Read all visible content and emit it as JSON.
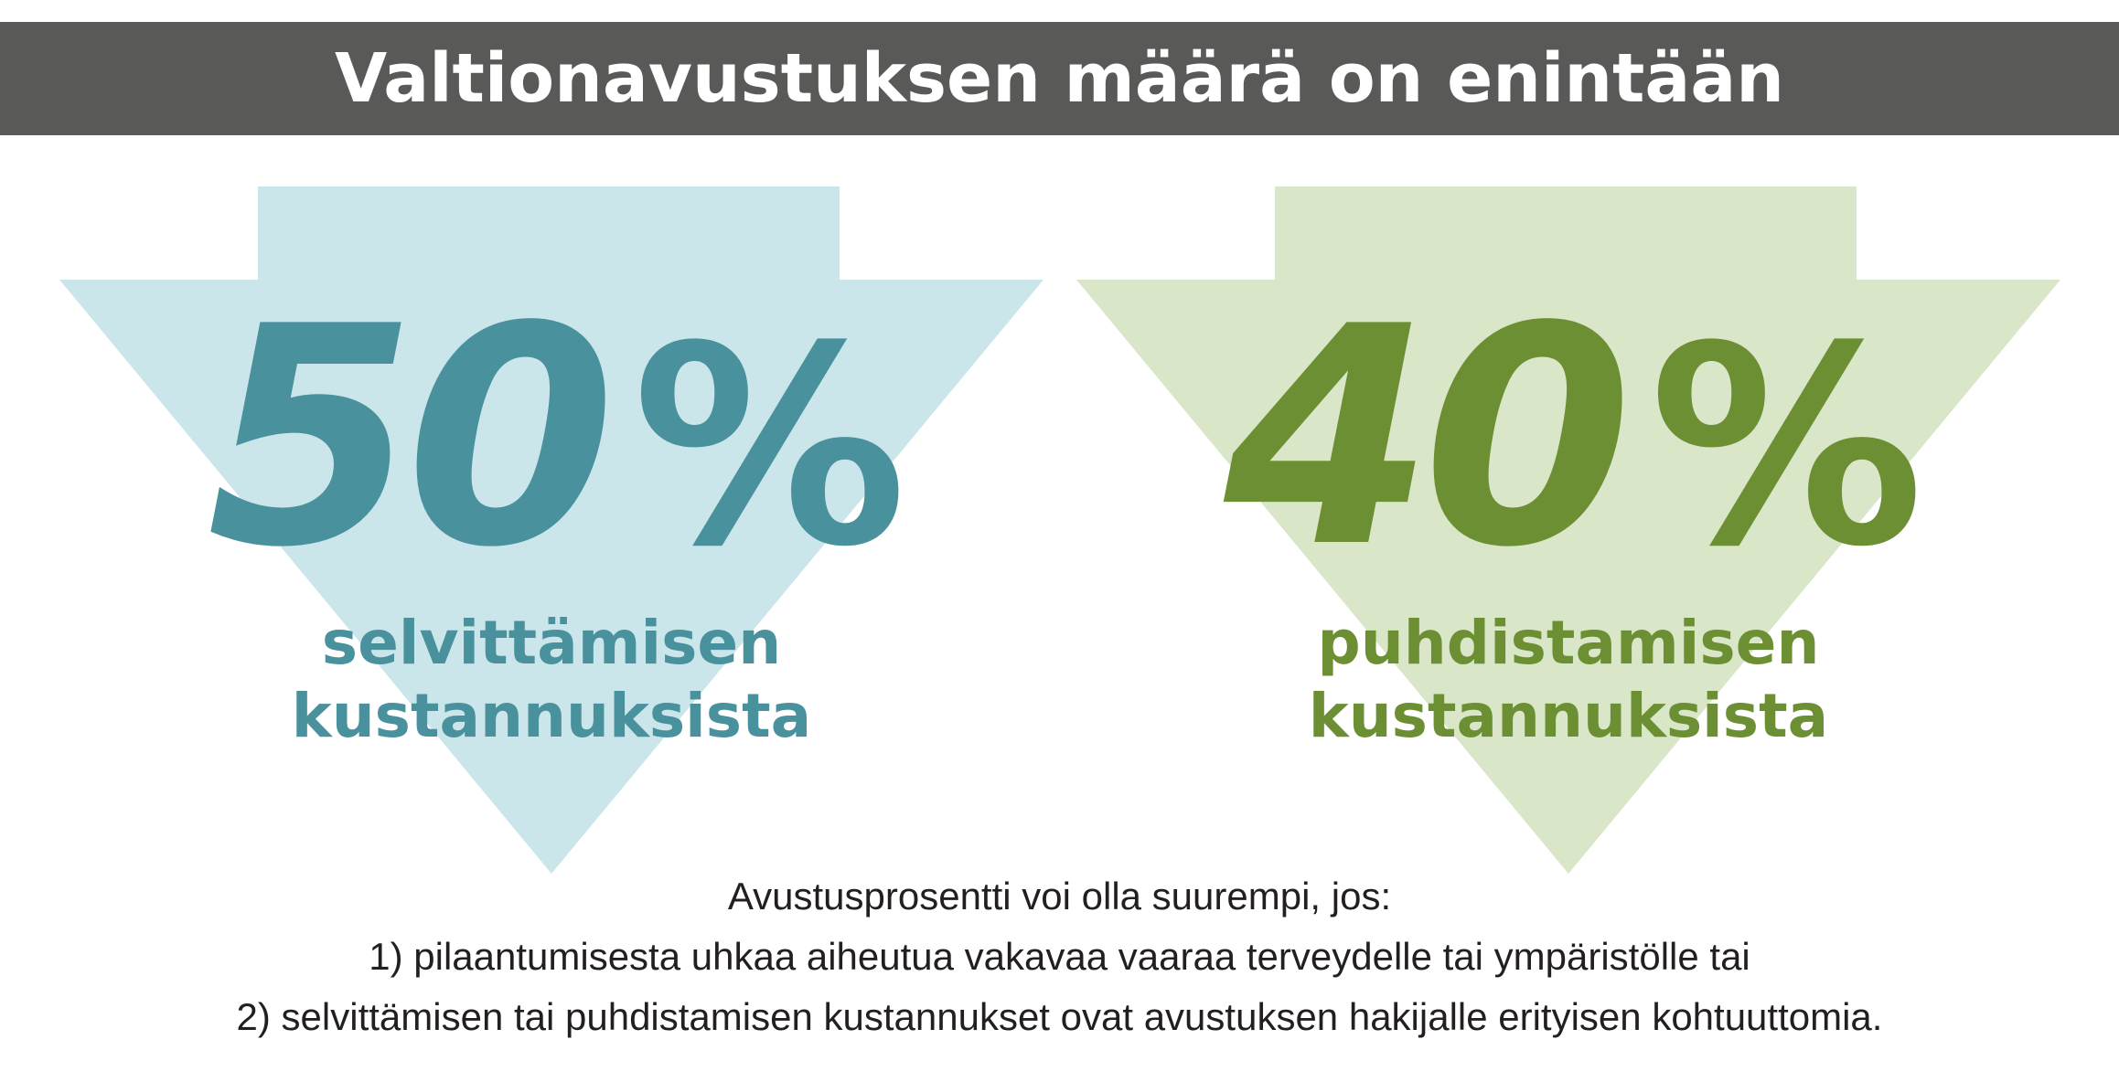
{
  "colors": {
    "banner_bg": "#595958",
    "left_arrow": "#cbe6ea",
    "left_text": "#4a919e",
    "right_arrow": "#d9e6c7",
    "right_text": "#6d8f34"
  },
  "header": {
    "title": "Valtionavustuksen määrä on enintään"
  },
  "left": {
    "value": "50",
    "unit": "%",
    "label_line1": "selvittämisen",
    "label_line2": "kustannuksista"
  },
  "right": {
    "value": "40",
    "unit": "%",
    "label_line1": "puhdistamisen",
    "label_line2": "kustannuksista"
  },
  "footer": {
    "line1": "Avustusprosentti voi olla suurempi, jos:",
    "line2": "1) pilaantumisesta uhkaa aiheutua vakavaa vaaraa terveydelle tai ympäristölle tai",
    "line3": "2) selvittämisen tai puhdistamisen kustannukset ovat avustuksen hakijalle erityisen kohtuuttomia."
  }
}
